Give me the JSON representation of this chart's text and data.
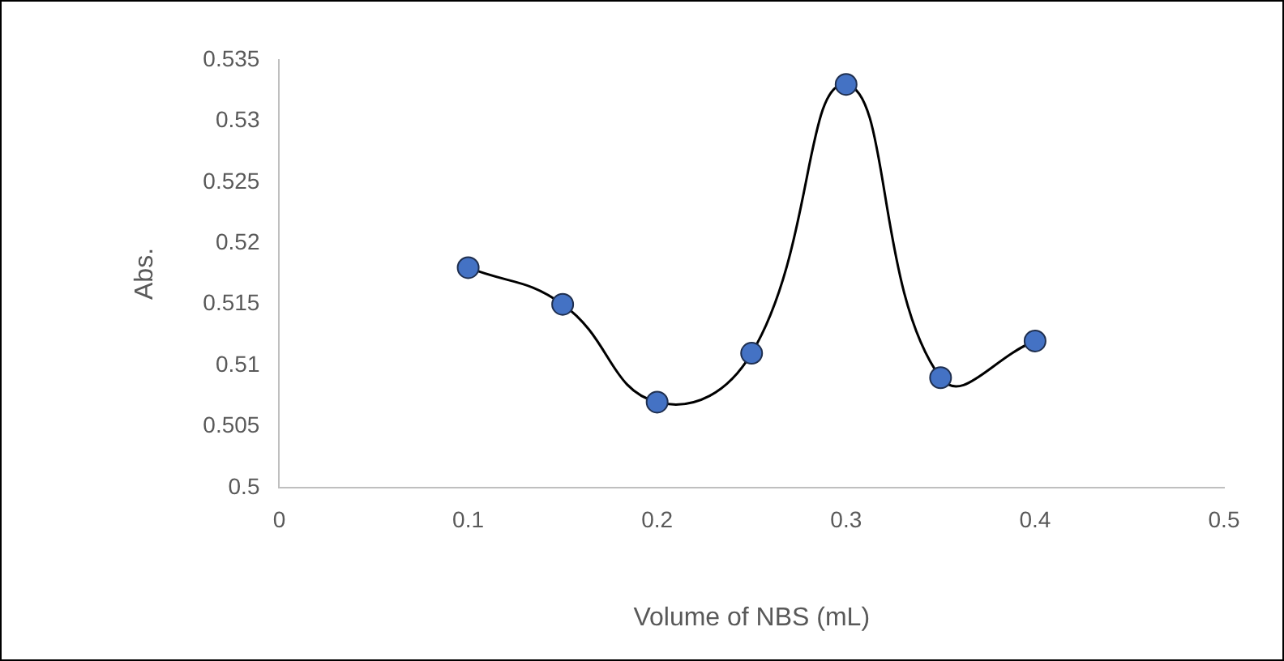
{
  "chart_data": {
    "type": "line",
    "xlabel": "Volume of NBS (mL)",
    "ylabel": "Abs.",
    "x": [
      0.1,
      0.15,
      0.2,
      0.25,
      0.3,
      0.35,
      0.4
    ],
    "series": [
      {
        "color": "#000000",
        "values": [
          0.518,
          0.515,
          0.507,
          0.511,
          0.533,
          0.509,
          0.512
        ]
      }
    ],
    "xlim": [
      0,
      0.5
    ],
    "xticks": [
      0,
      0.1,
      0.2,
      0.3,
      0.4,
      0.5
    ],
    "ylim": [
      0.5,
      0.535
    ],
    "yticks": [
      0.5,
      0.505,
      0.51,
      0.515,
      0.52,
      0.525,
      0.53,
      0.535
    ],
    "grid": false,
    "legend": false,
    "marker": "circle",
    "line_style": "solid"
  }
}
